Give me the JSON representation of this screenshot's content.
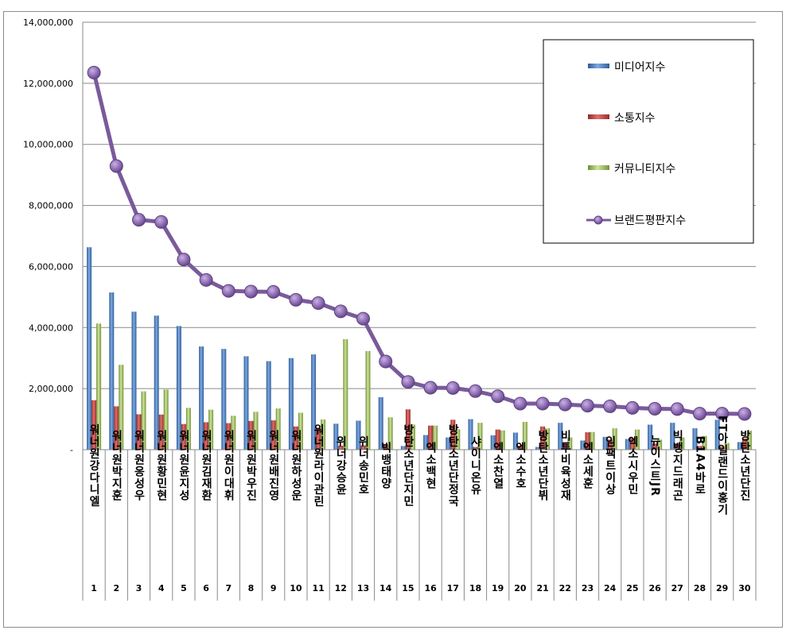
{
  "chart_data": {
    "type": "bar",
    "title": "",
    "xlabel": "",
    "ylabel": "",
    "ylim": [
      0,
      14000000
    ],
    "yticks": [
      0,
      2000000,
      4000000,
      6000000,
      8000000,
      10000000,
      12000000,
      14000000
    ],
    "ytick_labels": [
      "-",
      "2,000,000",
      "4,000,000",
      "6,000,000",
      "8,000,000",
      "10,000,000",
      "12,000,000",
      "14,000,000"
    ],
    "grid": true,
    "legend_position": "top-right",
    "categories": [
      "워너원강다니엘",
      "워너원박지훈",
      "워너원옹성우",
      "워너원황민현",
      "워너원윤지성",
      "워너원김재환",
      "워너원이대휘",
      "워너원박우진",
      "워너원배진영",
      "워너원하성운",
      "워너원라이관린",
      "워너원강승윤",
      "위너송민호",
      "빅뱅태양",
      "방탄소년단지민",
      "엑소백현",
      "방탄소년단정국",
      "샤이니온유",
      "엑소찬열",
      "엑소수호",
      "방탄소년단뷔",
      "비투비육성재",
      "엑소세훈",
      "임팩트이상",
      "엑소시우민",
      "뉴이스트JR",
      "빅뱅지드래곤",
      "B1A4바로",
      "FT아일랜드이홍기",
      "방탄소년단진"
    ],
    "category_display": [
      "워너원강다니엘",
      "워너원박지훈",
      "워너원옹성우",
      "워너원황민현",
      "워너원윤지성",
      "워너원김재환",
      "워너원이대휘",
      "워너원박우진",
      "워너원배진영",
      "워너원하성운",
      "워너원라이관린",
      "위너강승윤",
      "위너송민호",
      "빅뱅태양",
      "방탄소년단지민",
      "엑소백현",
      "방탄소년단정국",
      "샤이니온유",
      "엑소찬열",
      "엑소수호",
      "방탄소년단뷔",
      "비투비육성재",
      "엑소세훈",
      "임팩트이상",
      "엑소시우민",
      "뉴이스트JR",
      "빅뱅지드래곤",
      "B1A4바로",
      "FT아일랜드이홍기",
      "방탄소년단진"
    ],
    "ranks": [
      "1",
      "2",
      "3",
      "4",
      "5",
      "6",
      "7",
      "8",
      "9",
      "10",
      "11",
      "12",
      "13",
      "14",
      "15",
      "16",
      "17",
      "18",
      "19",
      "20",
      "21",
      "22",
      "23",
      "24",
      "25",
      "26",
      "27",
      "28",
      "29",
      "30"
    ],
    "series": [
      {
        "name": "미디어지수",
        "color": "#4a7ebb",
        "kind": "bar",
        "values": [
          6630000,
          5150000,
          4520000,
          4390000,
          4050000,
          3380000,
          3300000,
          3060000,
          2900000,
          3000000,
          3120000,
          850000,
          950000,
          1720000,
          120000,
          480000,
          400000,
          1000000,
          470000,
          560000,
          90000,
          880000,
          300000,
          420000,
          350000,
          820000,
          880000,
          700000,
          980000,
          250000
        ]
      },
      {
        "name": "소통지수",
        "color": "#c0504d",
        "kind": "bar",
        "values": [
          1620000,
          1420000,
          1160000,
          1150000,
          840000,
          900000,
          870000,
          940000,
          960000,
          760000,
          700000,
          130000,
          140000,
          180000,
          1320000,
          790000,
          980000,
          90000,
          660000,
          130000,
          760000,
          240000,
          570000,
          330000,
          380000,
          200000,
          200000,
          120000,
          100000,
          370000
        ]
      },
      {
        "name": "커뮤니티지수",
        "color": "#9bbb59",
        "kind": "bar",
        "values": [
          4130000,
          2780000,
          1910000,
          1970000,
          1370000,
          1310000,
          1110000,
          1240000,
          1350000,
          1210000,
          990000,
          3620000,
          3230000,
          1060000,
          820000,
          790000,
          670000,
          880000,
          630000,
          910000,
          700000,
          400000,
          580000,
          700000,
          660000,
          330000,
          400000,
          450000,
          220000,
          620000
        ]
      },
      {
        "name": "브랜드평판지수",
        "color": "#7a5a9b",
        "kind": "line",
        "values": [
          12350000,
          9290000,
          7530000,
          7460000,
          6230000,
          5560000,
          5200000,
          5180000,
          5170000,
          4910000,
          4800000,
          4530000,
          4290000,
          2890000,
          2220000,
          2030000,
          2020000,
          1920000,
          1750000,
          1510000,
          1510000,
          1480000,
          1440000,
          1420000,
          1370000,
          1340000,
          1330000,
          1180000,
          1180000,
          1170000
        ]
      }
    ]
  }
}
